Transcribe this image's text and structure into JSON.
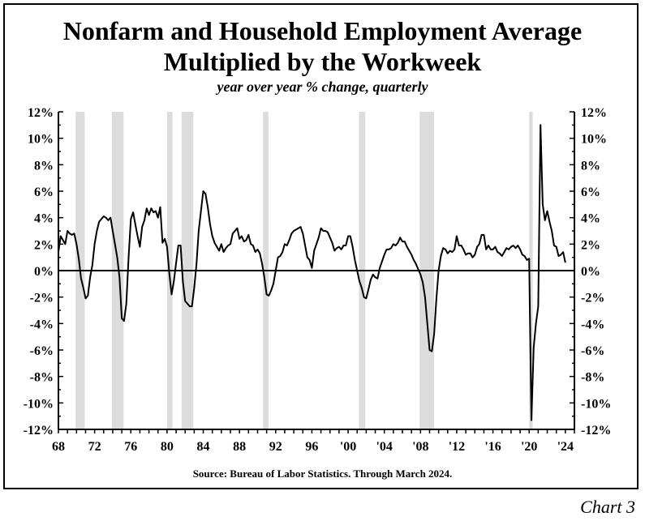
{
  "title_line1": "Nonfarm and Household Employment Average",
  "title_line2": "Multiplied by the Workweek",
  "subtitle": "year over year % change, quarterly",
  "source": "Source: Bureau of Labor Statistics. Through March 2024.",
  "chart_label": "Chart 3",
  "chart_data": {
    "type": "line",
    "title": "Nonfarm and Household Employment Average Multiplied by the Workweek",
    "subtitle": "year over year % change, quarterly",
    "xlim": [
      1968,
      2025
    ],
    "ylim": [
      -12,
      12
    ],
    "x_ticks": [
      1968,
      1972,
      1976,
      1980,
      1984,
      1988,
      1992,
      1996,
      2000,
      2004,
      2008,
      2012,
      2016,
      2020,
      2024
    ],
    "x_tick_labels": [
      "68",
      "72",
      "76",
      "80",
      "84",
      "88",
      "92",
      "96",
      "'00",
      "'04",
      "'08",
      "'12",
      "'16",
      "'20",
      "'24"
    ],
    "y_ticks": [
      12,
      10,
      8,
      6,
      4,
      2,
      0,
      -2,
      -4,
      -6,
      -8,
      -10,
      -12
    ],
    "y_tick_labels": [
      "12%",
      "10%",
      "8%",
      "6%",
      "4%",
      "2%",
      "0%",
      "-2%",
      "-4%",
      "-6%",
      "-8%",
      "-10%",
      "-12%"
    ],
    "grid": false,
    "recessions": [
      [
        1969.9,
        1970.9
      ],
      [
        1973.9,
        1975.2
      ],
      [
        1980.0,
        1980.6
      ],
      [
        1981.6,
        1982.9
      ],
      [
        1990.6,
        1991.2
      ],
      [
        2001.2,
        2001.9
      ],
      [
        2007.9,
        2009.5
      ],
      [
        2020.0,
        2020.4
      ]
    ],
    "series": [
      {
        "color": "#000000",
        "points": [
          [
            1968.0,
            1.4
          ],
          [
            1968.25,
            2.6
          ],
          [
            1968.5,
            2.3
          ],
          [
            1968.75,
            2.0
          ],
          [
            1969.0,
            3.0
          ],
          [
            1969.25,
            2.8
          ],
          [
            1969.5,
            2.7
          ],
          [
            1969.75,
            2.8
          ],
          [
            1970.0,
            2.0
          ],
          [
            1970.25,
            0.9
          ],
          [
            1970.5,
            -0.6
          ],
          [
            1970.75,
            -1.3
          ],
          [
            1971.0,
            -2.1
          ],
          [
            1971.25,
            -1.9
          ],
          [
            1971.5,
            -0.5
          ],
          [
            1971.75,
            0.4
          ],
          [
            1972.0,
            2.0
          ],
          [
            1972.25,
            3.0
          ],
          [
            1972.5,
            3.7
          ],
          [
            1972.75,
            3.9
          ],
          [
            1973.0,
            4.1
          ],
          [
            1973.25,
            4.0
          ],
          [
            1973.5,
            3.8
          ],
          [
            1973.75,
            4.0
          ],
          [
            1974.0,
            3.0
          ],
          [
            1974.25,
            2.0
          ],
          [
            1974.5,
            1.0
          ],
          [
            1974.75,
            -0.5
          ],
          [
            1975.0,
            -3.6
          ],
          [
            1975.25,
            -3.8
          ],
          [
            1975.5,
            -2.5
          ],
          [
            1975.75,
            1.0
          ],
          [
            1976.0,
            3.9
          ],
          [
            1976.25,
            4.4
          ],
          [
            1976.5,
            3.5
          ],
          [
            1976.75,
            2.6
          ],
          [
            1977.0,
            1.8
          ],
          [
            1977.25,
            3.3
          ],
          [
            1977.5,
            3.8
          ],
          [
            1977.75,
            4.7
          ],
          [
            1978.0,
            4.2
          ],
          [
            1978.25,
            4.7
          ],
          [
            1978.5,
            4.4
          ],
          [
            1978.75,
            4.5
          ],
          [
            1979.0,
            4.0
          ],
          [
            1979.25,
            4.8
          ],
          [
            1979.5,
            2.1
          ],
          [
            1979.75,
            2.4
          ],
          [
            1980.0,
            1.8
          ],
          [
            1980.25,
            -0.2
          ],
          [
            1980.5,
            -1.8
          ],
          [
            1980.75,
            -0.8
          ],
          [
            1981.0,
            0.6
          ],
          [
            1981.25,
            1.9
          ],
          [
            1981.5,
            1.9
          ],
          [
            1981.75,
            -0.8
          ],
          [
            1982.0,
            -2.3
          ],
          [
            1982.25,
            -2.5
          ],
          [
            1982.5,
            -2.7
          ],
          [
            1982.75,
            -2.7
          ],
          [
            1983.0,
            -1.3
          ],
          [
            1983.25,
            0.5
          ],
          [
            1983.5,
            3.0
          ],
          [
            1983.75,
            4.5
          ],
          [
            1984.0,
            6.0
          ],
          [
            1984.25,
            5.8
          ],
          [
            1984.5,
            4.8
          ],
          [
            1984.75,
            3.5
          ],
          [
            1985.0,
            2.6
          ],
          [
            1985.25,
            2.1
          ],
          [
            1985.5,
            1.8
          ],
          [
            1985.75,
            1.5
          ],
          [
            1986.0,
            2.0
          ],
          [
            1986.25,
            1.4
          ],
          [
            1986.5,
            1.7
          ],
          [
            1986.75,
            1.9
          ],
          [
            1987.0,
            2.0
          ],
          [
            1987.25,
            2.8
          ],
          [
            1987.5,
            3.0
          ],
          [
            1987.75,
            3.2
          ],
          [
            1988.0,
            2.4
          ],
          [
            1988.25,
            2.6
          ],
          [
            1988.5,
            2.2
          ],
          [
            1988.75,
            2.3
          ],
          [
            1989.0,
            2.7
          ],
          [
            1989.25,
            2.0
          ],
          [
            1989.5,
            1.9
          ],
          [
            1989.75,
            1.4
          ],
          [
            1990.0,
            1.6
          ],
          [
            1990.25,
            1.3
          ],
          [
            1990.5,
            0.5
          ],
          [
            1990.75,
            -0.5
          ],
          [
            1991.0,
            -1.8
          ],
          [
            1991.25,
            -1.9
          ],
          [
            1991.5,
            -1.5
          ],
          [
            1991.75,
            -1.0
          ],
          [
            1992.0,
            0.0
          ],
          [
            1992.25,
            1.0
          ],
          [
            1992.5,
            1.1
          ],
          [
            1992.75,
            1.4
          ],
          [
            1993.0,
            2.0
          ],
          [
            1993.25,
            1.9
          ],
          [
            1993.5,
            2.3
          ],
          [
            1993.75,
            2.8
          ],
          [
            1994.0,
            3.0
          ],
          [
            1994.25,
            3.1
          ],
          [
            1994.5,
            3.2
          ],
          [
            1994.75,
            3.3
          ],
          [
            1995.0,
            2.8
          ],
          [
            1995.25,
            1.9
          ],
          [
            1995.5,
            1.0
          ],
          [
            1995.75,
            0.8
          ],
          [
            1996.0,
            0.2
          ],
          [
            1996.25,
            1.5
          ],
          [
            1996.5,
            2.0
          ],
          [
            1996.75,
            2.5
          ],
          [
            1997.0,
            3.2
          ],
          [
            1997.25,
            3.0
          ],
          [
            1997.5,
            3.0
          ],
          [
            1997.75,
            2.9
          ],
          [
            1998.0,
            2.5
          ],
          [
            1998.25,
            2.1
          ],
          [
            1998.5,
            1.5
          ],
          [
            1998.75,
            1.7
          ],
          [
            1999.0,
            1.8
          ],
          [
            1999.25,
            1.6
          ],
          [
            1999.5,
            1.9
          ],
          [
            1999.75,
            1.9
          ],
          [
            2000.0,
            2.6
          ],
          [
            2000.25,
            2.6
          ],
          [
            2000.5,
            1.8
          ],
          [
            2000.75,
            0.8
          ],
          [
            2001.0,
            0.0
          ],
          [
            2001.25,
            -0.8
          ],
          [
            2001.5,
            -1.3
          ],
          [
            2001.75,
            -2.0
          ],
          [
            2002.0,
            -2.1
          ],
          [
            2002.25,
            -1.4
          ],
          [
            2002.5,
            -0.7
          ],
          [
            2002.75,
            -0.3
          ],
          [
            2003.0,
            -0.5
          ],
          [
            2003.25,
            -0.6
          ],
          [
            2003.5,
            0.2
          ],
          [
            2003.75,
            0.7
          ],
          [
            2004.0,
            1.2
          ],
          [
            2004.25,
            1.6
          ],
          [
            2004.5,
            1.6
          ],
          [
            2004.75,
            1.7
          ],
          [
            2005.0,
            2.0
          ],
          [
            2005.25,
            1.9
          ],
          [
            2005.5,
            2.1
          ],
          [
            2005.75,
            2.5
          ],
          [
            2006.0,
            2.2
          ],
          [
            2006.25,
            2.2
          ],
          [
            2006.5,
            1.8
          ],
          [
            2006.75,
            1.5
          ],
          [
            2007.0,
            1.2
          ],
          [
            2007.25,
            0.8
          ],
          [
            2007.5,
            0.5
          ],
          [
            2007.75,
            0.1
          ],
          [
            2008.0,
            -0.3
          ],
          [
            2008.25,
            -0.9
          ],
          [
            2008.5,
            -2.0
          ],
          [
            2008.75,
            -4.0
          ],
          [
            2009.0,
            -6.0
          ],
          [
            2009.25,
            -6.1
          ],
          [
            2009.5,
            -4.8
          ],
          [
            2009.75,
            -2.2
          ],
          [
            2010.0,
            0.0
          ],
          [
            2010.25,
            1.1
          ],
          [
            2010.5,
            1.7
          ],
          [
            2010.75,
            1.6
          ],
          [
            2011.0,
            1.3
          ],
          [
            2011.25,
            1.5
          ],
          [
            2011.5,
            1.4
          ],
          [
            2011.75,
            1.6
          ],
          [
            2012.0,
            2.6
          ],
          [
            2012.25,
            1.9
          ],
          [
            2012.5,
            1.9
          ],
          [
            2012.75,
            1.6
          ],
          [
            2013.0,
            1.2
          ],
          [
            2013.25,
            1.3
          ],
          [
            2013.5,
            1.3
          ],
          [
            2013.75,
            1.0
          ],
          [
            2014.0,
            1.2
          ],
          [
            2014.25,
            1.8
          ],
          [
            2014.5,
            2.0
          ],
          [
            2014.75,
            2.7
          ],
          [
            2015.0,
            2.7
          ],
          [
            2015.25,
            1.6
          ],
          [
            2015.5,
            1.9
          ],
          [
            2015.75,
            1.6
          ],
          [
            2016.0,
            1.6
          ],
          [
            2016.25,
            1.8
          ],
          [
            2016.5,
            1.4
          ],
          [
            2016.75,
            1.3
          ],
          [
            2017.0,
            1.1
          ],
          [
            2017.25,
            1.4
          ],
          [
            2017.5,
            1.7
          ],
          [
            2017.75,
            1.6
          ],
          [
            2018.0,
            1.8
          ],
          [
            2018.25,
            1.9
          ],
          [
            2018.5,
            1.7
          ],
          [
            2018.75,
            1.9
          ],
          [
            2019.0,
            1.6
          ],
          [
            2019.25,
            1.2
          ],
          [
            2019.5,
            1.1
          ],
          [
            2019.75,
            0.8
          ],
          [
            2020.0,
            0.9
          ],
          [
            2020.25,
            -11.3
          ],
          [
            2020.5,
            -5.8
          ],
          [
            2020.75,
            -4.0
          ],
          [
            2021.0,
            -2.7
          ],
          [
            2021.25,
            11.0
          ],
          [
            2021.5,
            5.0
          ],
          [
            2021.75,
            3.8
          ],
          [
            2022.0,
            4.5
          ],
          [
            2022.25,
            3.7
          ],
          [
            2022.5,
            3.0
          ],
          [
            2022.75,
            1.9
          ],
          [
            2023.0,
            1.8
          ],
          [
            2023.25,
            1.1
          ],
          [
            2023.5,
            1.2
          ],
          [
            2023.75,
            1.4
          ],
          [
            2024.0,
            0.6
          ]
        ]
      }
    ]
  }
}
